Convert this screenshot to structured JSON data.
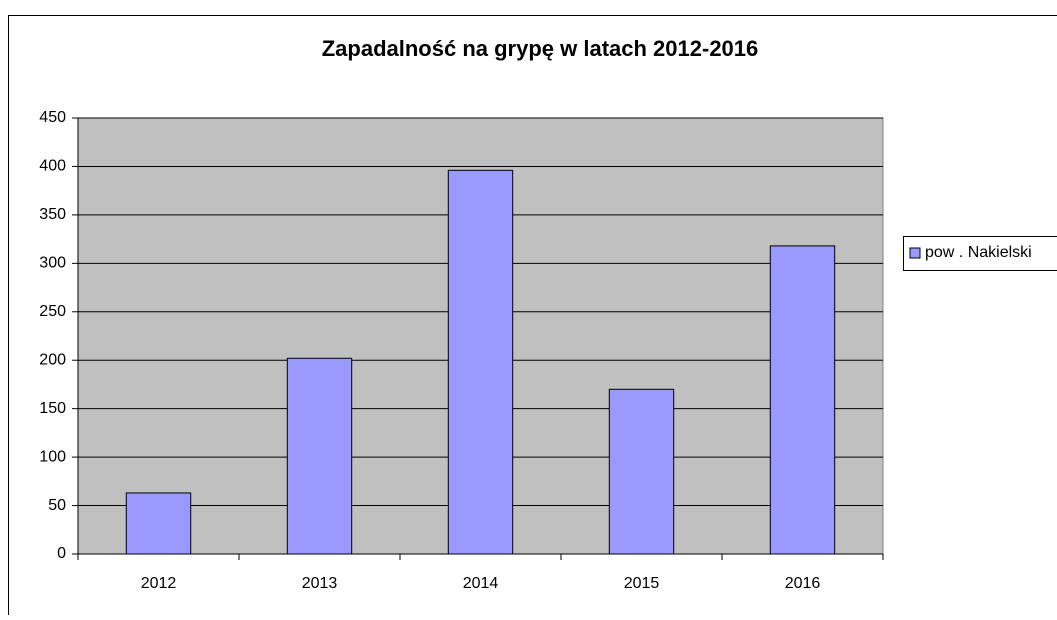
{
  "chart_data": {
    "type": "bar",
    "title": "Zapadalność na grypę  w latach 2012-2016",
    "categories": [
      "2012",
      "2013",
      "2014",
      "2015",
      "2016"
    ],
    "series": [
      {
        "name": "pow . Nakielski",
        "color": "#9999ff",
        "values": [
          63,
          202,
          396,
          170,
          318
        ]
      }
    ],
    "ylim": [
      0,
      450
    ],
    "yticks": [
      0,
      50,
      100,
      150,
      200,
      250,
      300,
      350,
      400,
      450
    ],
    "grid": true,
    "legend": "right",
    "plot_background": "#c0c0c0"
  }
}
